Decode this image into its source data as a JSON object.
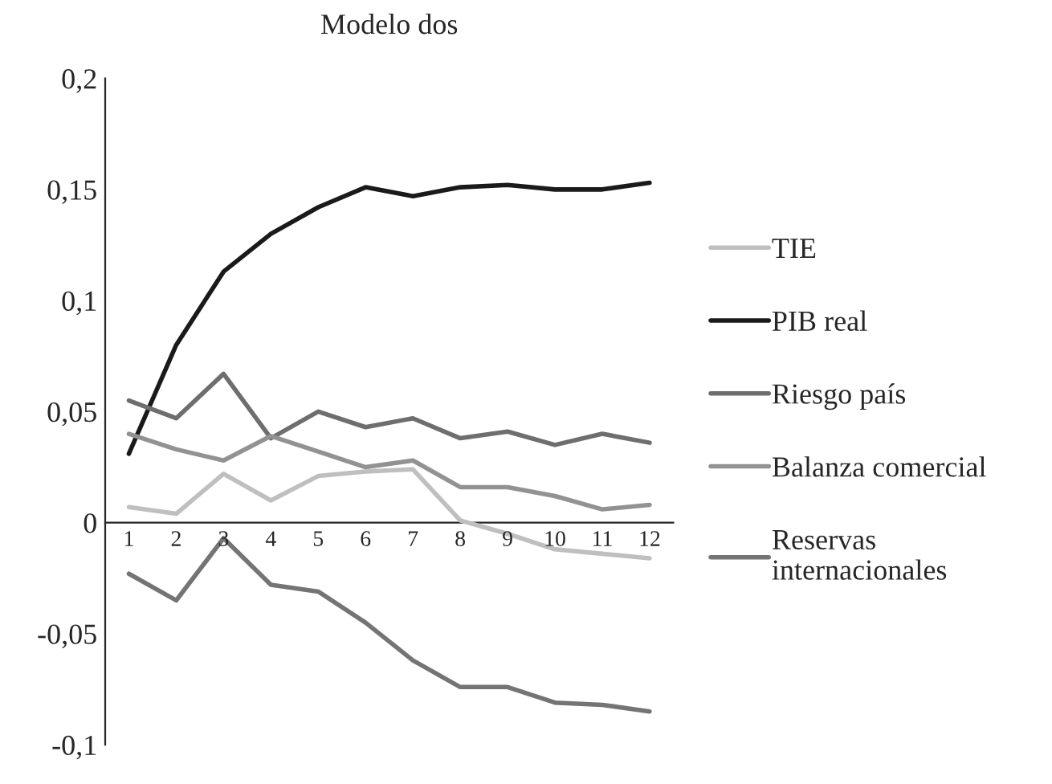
{
  "chart_data": {
    "type": "line",
    "title": "Modelo dos",
    "categories": [
      "1",
      "2",
      "3",
      "4",
      "5",
      "6",
      "7",
      "8",
      "9",
      "10",
      "11",
      "12"
    ],
    "series": [
      {
        "name": "TIE",
        "color": "#bfbfbf",
        "values": [
          0.007,
          0.004,
          0.022,
          0.01,
          0.021,
          0.023,
          0.024,
          0.001,
          -0.005,
          -0.012,
          -0.014,
          -0.016
        ]
      },
      {
        "name": "PIB real",
        "color": "#1a1a1a",
        "values": [
          0.031,
          0.08,
          0.113,
          0.13,
          0.142,
          0.151,
          0.147,
          0.151,
          0.152,
          0.15,
          0.15,
          0.153
        ]
      },
      {
        "name": "Riesgo país",
        "color": "#6e6e6e",
        "values": [
          0.055,
          0.047,
          0.067,
          0.038,
          0.05,
          0.043,
          0.047,
          0.038,
          0.041,
          0.035,
          0.04,
          0.036
        ]
      },
      {
        "name": "Balanza comercial",
        "color": "#929292",
        "values": [
          0.04,
          0.033,
          0.028,
          0.039,
          0.032,
          0.025,
          0.028,
          0.016,
          0.016,
          0.012,
          0.006,
          0.008
        ]
      },
      {
        "name": "Reservas\ninternacionales",
        "color": "#747474",
        "values": [
          -0.023,
          -0.035,
          -0.007,
          -0.028,
          -0.031,
          -0.045,
          -0.062,
          -0.074,
          -0.074,
          -0.081,
          -0.082,
          -0.085
        ]
      }
    ],
    "ylim": [
      -0.1,
      0.2
    ],
    "yticks": [
      {
        "value": -0.1,
        "label": "-0,1"
      },
      {
        "value": -0.05,
        "label": "-0,05"
      },
      {
        "value": 0,
        "label": "0"
      },
      {
        "value": 0.05,
        "label": "0,05"
      },
      {
        "value": 0.1,
        "label": "0,1"
      },
      {
        "value": 0.15,
        "label": "0,15"
      },
      {
        "value": 0.2,
        "label": "0,2"
      }
    ],
    "grid": false,
    "legend": "right",
    "marker": "none",
    "line_style": "solid"
  }
}
